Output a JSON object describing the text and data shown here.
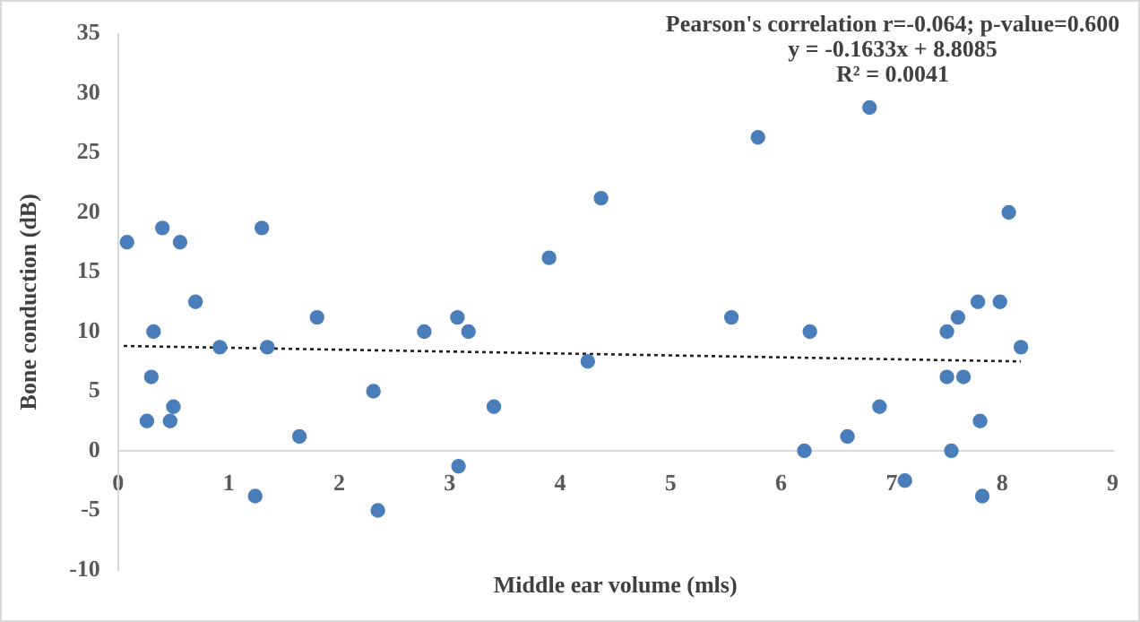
{
  "chart_data": {
    "type": "scatter",
    "xlabel": "Middle ear volume (mls)",
    "ylabel": "Bone conduction (dB)",
    "annotations": [
      "Pearson's correlation r=-0.064; p-value=0.600",
      "y = -0.1633x + 8.8085",
      "R² = 0.0041"
    ],
    "xlim": [
      0,
      9
    ],
    "xticks": [
      0,
      1,
      2,
      3,
      4,
      5,
      6,
      7,
      8,
      9
    ],
    "ylim": [
      -10,
      35
    ],
    "yticks": [
      -10,
      -5,
      0,
      5,
      10,
      15,
      20,
      25,
      30,
      35
    ],
    "grid": false,
    "legend": false,
    "marker": "circle",
    "series": [
      {
        "color": "#4a7ebb",
        "x": [
          0.08,
          0.4,
          0.56,
          0.7,
          1.3,
          1.8,
          3.9,
          0.26,
          0.3,
          0.32,
          0.47,
          0.5,
          0.92,
          1.24,
          1.35,
          1.64,
          2.31,
          2.35,
          2.77,
          3.07,
          3.08,
          3.17,
          3.4,
          4.25,
          4.37,
          5.79,
          6.8,
          8.06,
          5.55,
          6.26,
          6.21,
          6.6,
          6.89,
          7.12,
          7.5,
          7.5,
          7.6,
          7.65,
          7.78,
          7.98,
          7.54,
          7.8,
          7.82,
          8.17
        ],
        "values": [
          17.5,
          18.7,
          17.5,
          12.5,
          18.7,
          11.2,
          16.2,
          2.5,
          6.2,
          10,
          2.5,
          3.7,
          8.7,
          -3.8,
          8.7,
          1.2,
          5,
          -5,
          10,
          11.2,
          -1.3,
          10,
          3.7,
          7.5,
          21.2,
          26.3,
          28.8,
          20,
          11.2,
          10,
          0,
          1.2,
          3.7,
          -2.5,
          10,
          6.2,
          11.2,
          6.2,
          12.5,
          12.5,
          0,
          2.5,
          -3.8,
          8.7
        ]
      },
      {
        "type": "line",
        "color": "#1f1f1f",
        "line_style": "dotted",
        "marker": "none",
        "x": [
          0.05,
          8.17
        ],
        "values": [
          8.8,
          7.5
        ]
      }
    ]
  }
}
